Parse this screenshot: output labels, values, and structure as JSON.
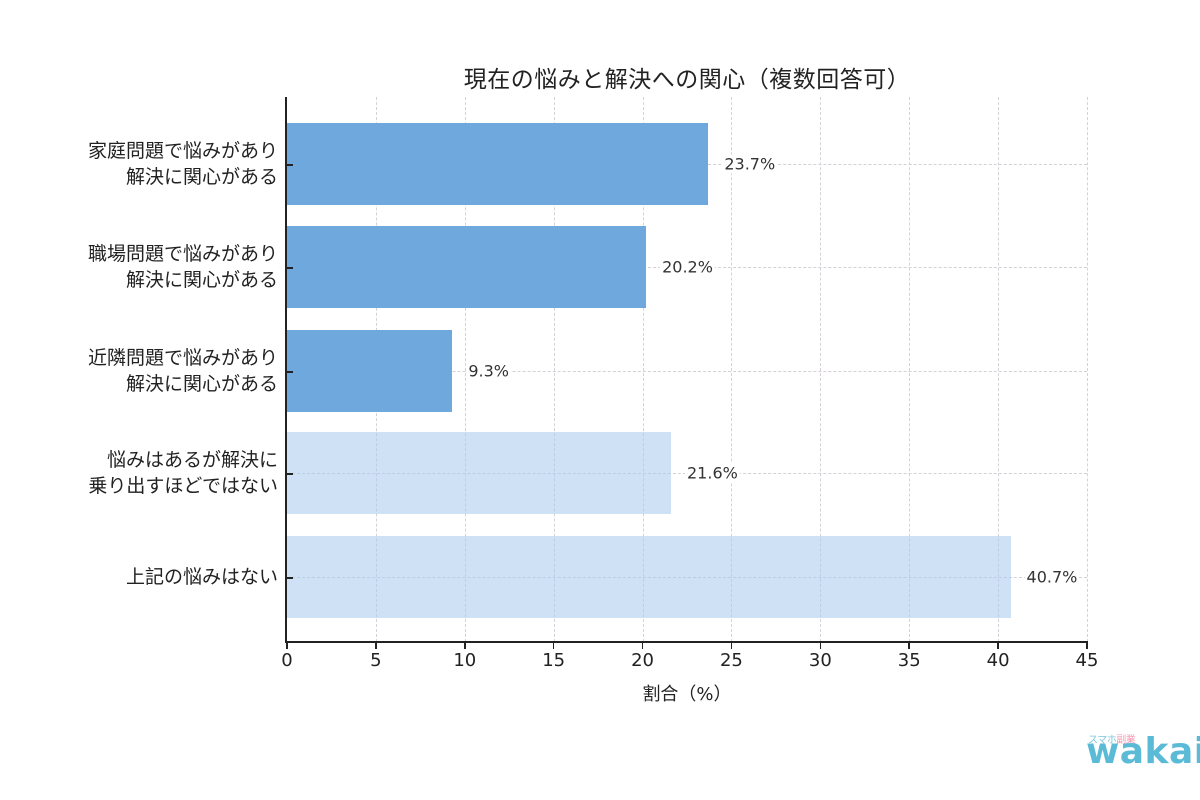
{
  "chart_data": {
    "type": "bar",
    "orientation": "horizontal",
    "title": "現在の悩みと解決への関心（複数回答可）",
    "xlabel": "割合（%）",
    "ylabel": "",
    "xlim": [
      0,
      45
    ],
    "x_ticks": [
      0,
      5,
      10,
      15,
      20,
      25,
      30,
      35,
      40,
      45
    ],
    "grid": true,
    "legend": null,
    "categories": [
      "家庭問題で悩みがあり\n解決に関心がある",
      "職場問題で悩みがあり\n解決に関心がある",
      "近隣問題で悩みがあり\n解決に関心がある",
      "悩みはあるが解決に\n乗り出すほどではない",
      "上記の悩みはない"
    ],
    "values": [
      23.7,
      20.2,
      9.3,
      21.6,
      40.7
    ],
    "value_labels": [
      "23.7%",
      "20.2%",
      "9.3%",
      "21.6%",
      "40.7%"
    ],
    "bar_colors": [
      "#6fa8dc",
      "#6fa8dc",
      "#6fa8dc",
      "#cfe2f3",
      "#cfe2f3"
    ]
  },
  "chart": {
    "title": "現在の悩みと解決への関心（複数回答可）",
    "x_axis_title": "割合（%）",
    "x_tick_labels": [
      "0",
      "5",
      "10",
      "15",
      "20",
      "25",
      "30",
      "35",
      "40",
      "45"
    ],
    "categories": [
      {
        "line1": "家庭問題で悩みがあり",
        "line2": "解決に関心がある",
        "value": 23.7,
        "label": "23.7%",
        "color": "#6fa8dc"
      },
      {
        "line1": "職場問題で悩みがあり",
        "line2": "解決に関心がある",
        "value": 20.2,
        "label": "20.2%",
        "color": "#6fa8dc"
      },
      {
        "line1": "近隣問題で悩みがあり",
        "line2": "解決に関心がある",
        "value": 9.3,
        "label": "9.3%",
        "color": "#6fa8dc"
      },
      {
        "line1": "悩みはあるが解決に",
        "line2": "乗り出すほどではない",
        "value": 21.6,
        "label": "21.6%",
        "color": "#cfe2f3"
      },
      {
        "line1": "上記の悩みはない",
        "line2": "",
        "value": 40.7,
        "label": "40.7%",
        "color": "#cfe2f3"
      }
    ]
  },
  "watermark": {
    "small_text_blue": "スマホ",
    "small_text_pink": "副業",
    "brand": "wakai",
    "brand_color": "#5bbbd6",
    "accent_color": "#f59ab0"
  }
}
